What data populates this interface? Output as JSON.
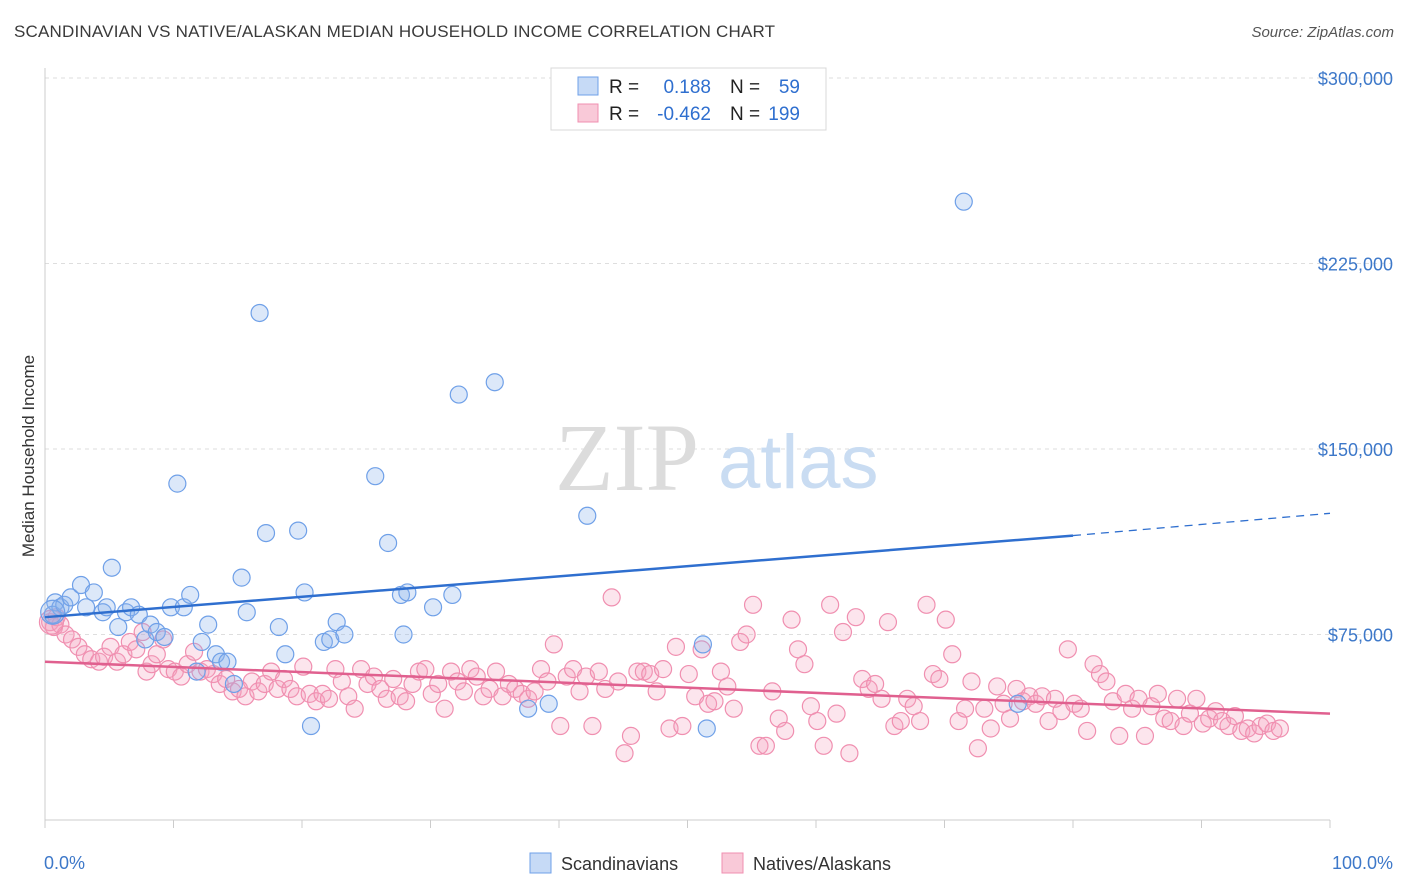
{
  "title": "SCANDINAVIAN VS NATIVE/ALASKAN MEDIAN HOUSEHOLD INCOME CORRELATION CHART",
  "source": "Source: ZipAtlas.com",
  "watermark": {
    "zip": "ZIP",
    "atlas": "atlas"
  },
  "legend": {
    "rows": [
      {
        "r_label": "R =",
        "r_value": "0.188",
        "n_label": "N =",
        "n_value": "59"
      },
      {
        "r_label": "R =",
        "r_value": "-0.462",
        "n_label": "N =",
        "n_value": "199"
      }
    ]
  },
  "bottom_legend": [
    "Scandinavians",
    "Natives/Alaskans"
  ],
  "chart_data": {
    "type": "scatter",
    "title": "SCANDINAVIAN VS NATIVE/ALASKAN MEDIAN HOUSEHOLD INCOME CORRELATION CHART",
    "xlabel": "",
    "ylabel": "Median Household Income",
    "xlim": [
      0,
      100
    ],
    "ylim": [
      0,
      310000
    ],
    "x_tick_labels": [
      "0.0%",
      "100.0%"
    ],
    "y_ticks": [
      75000,
      150000,
      225000,
      300000
    ],
    "y_tick_labels": [
      "$75,000",
      "$150,000",
      "$225,000",
      "$300,000"
    ],
    "grid": "horizontal dashed",
    "legend_position": "top-center",
    "colors": {
      "scandinavians": "#6fa0e8",
      "natives": "#f08fb0",
      "blue_line": "#2f6fcf",
      "pink_line": "#e0608f"
    },
    "series": [
      {
        "name": "Scandinavians",
        "r": 0.188,
        "n": 59,
        "trend": {
          "x0": 0,
          "y0": 82000,
          "x1": 80,
          "y1": 115000,
          "dash_to_x": 100,
          "dash_to_y": 124000
        },
        "points": [
          [
            0.8,
            88000
          ],
          [
            0.6,
            83000
          ],
          [
            1.2,
            86000
          ],
          [
            1.5,
            87000
          ],
          [
            2.0,
            90000
          ],
          [
            2.8,
            95000
          ],
          [
            3.2,
            86000
          ],
          [
            3.8,
            92000
          ],
          [
            4.5,
            84000
          ],
          [
            4.8,
            86000
          ],
          [
            5.2,
            102000
          ],
          [
            5.7,
            78000
          ],
          [
            6.3,
            84000
          ],
          [
            6.7,
            86000
          ],
          [
            7.3,
            83000
          ],
          [
            7.8,
            73000
          ],
          [
            8.2,
            79000
          ],
          [
            8.7,
            76000
          ],
          [
            9.3,
            74000
          ],
          [
            9.8,
            86000
          ],
          [
            10.3,
            136000
          ],
          [
            10.8,
            86000
          ],
          [
            11.3,
            91000
          ],
          [
            11.8,
            60000
          ],
          [
            12.2,
            72000
          ],
          [
            12.7,
            79000
          ],
          [
            13.3,
            67000
          ],
          [
            13.7,
            64000
          ],
          [
            14.2,
            64000
          ],
          [
            14.7,
            55000
          ],
          [
            15.3,
            98000
          ],
          [
            15.7,
            84000
          ],
          [
            16.7,
            205000
          ],
          [
            17.2,
            116000
          ],
          [
            18.2,
            78000
          ],
          [
            18.7,
            67000
          ],
          [
            19.7,
            117000
          ],
          [
            20.2,
            92000
          ],
          [
            20.7,
            38000
          ],
          [
            21.7,
            72000
          ],
          [
            22.2,
            73000
          ],
          [
            22.7,
            80000
          ],
          [
            23.3,
            75000
          ],
          [
            25.7,
            139000
          ],
          [
            26.7,
            112000
          ],
          [
            27.7,
            91000
          ],
          [
            28.2,
            92000
          ],
          [
            27.9,
            75000
          ],
          [
            30.2,
            86000
          ],
          [
            31.7,
            91000
          ],
          [
            32.2,
            172000
          ],
          [
            35.0,
            177000
          ],
          [
            37.6,
            45000
          ],
          [
            39.2,
            47000
          ],
          [
            42.2,
            123000
          ],
          [
            51.2,
            71000
          ],
          [
            51.5,
            37000
          ],
          [
            71.5,
            250000
          ],
          [
            75.7,
            47000
          ]
        ]
      },
      {
        "name": "Natives/Alaskans",
        "r": -0.462,
        "n": 199,
        "trend": {
          "x0": 0,
          "y0": 64000,
          "x1": 100,
          "y1": 43000
        },
        "points": [
          [
            0.4,
            80000
          ],
          [
            0.7,
            78000
          ],
          [
            0.9,
            82000
          ],
          [
            1.2,
            79000
          ],
          [
            1.6,
            75000
          ],
          [
            2.1,
            73000
          ],
          [
            2.6,
            70000
          ],
          [
            3.1,
            67000
          ],
          [
            3.6,
            65000
          ],
          [
            4.2,
            64000
          ],
          [
            4.6,
            66000
          ],
          [
            5.1,
            70000
          ],
          [
            5.6,
            64000
          ],
          [
            6.1,
            67000
          ],
          [
            6.6,
            72000
          ],
          [
            7.1,
            69000
          ],
          [
            7.6,
            76000
          ],
          [
            7.9,
            60000
          ],
          [
            8.3,
            63000
          ],
          [
            8.7,
            67000
          ],
          [
            9.2,
            73000
          ],
          [
            9.6,
            61000
          ],
          [
            10.1,
            60000
          ],
          [
            10.6,
            58000
          ],
          [
            11.1,
            63000
          ],
          [
            11.6,
            68000
          ],
          [
            12.1,
            60000
          ],
          [
            12.6,
            61000
          ],
          [
            13.1,
            59000
          ],
          [
            13.6,
            55000
          ],
          [
            14.1,
            57000
          ],
          [
            14.6,
            52000
          ],
          [
            15.1,
            53000
          ],
          [
            15.6,
            50000
          ],
          [
            16.1,
            56000
          ],
          [
            16.6,
            52000
          ],
          [
            17.1,
            55000
          ],
          [
            17.6,
            60000
          ],
          [
            18.1,
            53000
          ],
          [
            18.6,
            57000
          ],
          [
            19.1,
            53000
          ],
          [
            19.6,
            50000
          ],
          [
            20.1,
            62000
          ],
          [
            20.6,
            51000
          ],
          [
            21.1,
            48000
          ],
          [
            21.6,
            51000
          ],
          [
            22.1,
            49000
          ],
          [
            22.6,
            61000
          ],
          [
            23.1,
            56000
          ],
          [
            23.6,
            50000
          ],
          [
            24.1,
            45000
          ],
          [
            24.6,
            61000
          ],
          [
            25.1,
            55000
          ],
          [
            25.6,
            58000
          ],
          [
            26.1,
            53000
          ],
          [
            26.6,
            49000
          ],
          [
            27.1,
            57000
          ],
          [
            27.6,
            50000
          ],
          [
            28.1,
            48000
          ],
          [
            28.6,
            55000
          ],
          [
            29.1,
            60000
          ],
          [
            29.6,
            61000
          ],
          [
            30.1,
            51000
          ],
          [
            30.6,
            55000
          ],
          [
            31.1,
            45000
          ],
          [
            31.6,
            60000
          ],
          [
            32.1,
            56000
          ],
          [
            32.6,
            52000
          ],
          [
            33.1,
            61000
          ],
          [
            33.6,
            58000
          ],
          [
            34.1,
            50000
          ],
          [
            34.6,
            53000
          ],
          [
            35.1,
            60000
          ],
          [
            35.6,
            50000
          ],
          [
            36.1,
            55000
          ],
          [
            36.6,
            53000
          ],
          [
            37.1,
            51000
          ],
          [
            37.6,
            49000
          ],
          [
            38.1,
            52000
          ],
          [
            38.6,
            61000
          ],
          [
            39.1,
            56000
          ],
          [
            39.6,
            71000
          ],
          [
            40.1,
            38000
          ],
          [
            40.6,
            58000
          ],
          [
            41.1,
            61000
          ],
          [
            41.6,
            52000
          ],
          [
            42.1,
            58000
          ],
          [
            42.6,
            38000
          ],
          [
            43.1,
            60000
          ],
          [
            43.6,
            53000
          ],
          [
            44.1,
            90000
          ],
          [
            44.6,
            56000
          ],
          [
            45.1,
            27000
          ],
          [
            45.6,
            34000
          ],
          [
            46.1,
            60000
          ],
          [
            46.6,
            60000
          ],
          [
            47.1,
            59000
          ],
          [
            47.6,
            52000
          ],
          [
            48.1,
            61000
          ],
          [
            48.6,
            37000
          ],
          [
            49.1,
            70000
          ],
          [
            49.6,
            38000
          ],
          [
            50.1,
            59000
          ],
          [
            50.6,
            50000
          ],
          [
            51.1,
            69000
          ],
          [
            51.6,
            47000
          ],
          [
            52.1,
            48000
          ],
          [
            52.6,
            60000
          ],
          [
            53.1,
            54000
          ],
          [
            53.6,
            45000
          ],
          [
            54.1,
            72000
          ],
          [
            54.6,
            75000
          ],
          [
            55.1,
            87000
          ],
          [
            55.6,
            30000
          ],
          [
            56.1,
            30000
          ],
          [
            56.6,
            52000
          ],
          [
            57.1,
            41000
          ],
          [
            57.6,
            36000
          ],
          [
            58.1,
            81000
          ],
          [
            58.6,
            69000
          ],
          [
            59.1,
            63000
          ],
          [
            59.6,
            46000
          ],
          [
            60.1,
            40000
          ],
          [
            60.6,
            30000
          ],
          [
            61.1,
            87000
          ],
          [
            61.6,
            43000
          ],
          [
            62.1,
            76000
          ],
          [
            62.6,
            27000
          ],
          [
            63.1,
            82000
          ],
          [
            63.6,
            57000
          ],
          [
            64.1,
            53000
          ],
          [
            64.6,
            55000
          ],
          [
            65.1,
            49000
          ],
          [
            65.6,
            80000
          ],
          [
            66.1,
            38000
          ],
          [
            66.6,
            40000
          ],
          [
            67.1,
            49000
          ],
          [
            67.6,
            46000
          ],
          [
            68.1,
            40000
          ],
          [
            68.6,
            87000
          ],
          [
            69.1,
            59000
          ],
          [
            69.6,
            57000
          ],
          [
            70.1,
            81000
          ],
          [
            70.6,
            67000
          ],
          [
            71.1,
            40000
          ],
          [
            71.6,
            45000
          ],
          [
            72.1,
            56000
          ],
          [
            72.6,
            29000
          ],
          [
            73.1,
            45000
          ],
          [
            73.6,
            37000
          ],
          [
            74.1,
            54000
          ],
          [
            74.6,
            47000
          ],
          [
            75.1,
            41000
          ],
          [
            75.6,
            53000
          ],
          [
            76.1,
            48000
          ],
          [
            76.6,
            50000
          ],
          [
            77.1,
            47000
          ],
          [
            77.6,
            50000
          ],
          [
            78.1,
            40000
          ],
          [
            78.6,
            49000
          ],
          [
            79.1,
            44000
          ],
          [
            79.6,
            69000
          ],
          [
            80.1,
            47000
          ],
          [
            80.6,
            45000
          ],
          [
            81.1,
            36000
          ],
          [
            81.6,
            63000
          ],
          [
            82.1,
            59000
          ],
          [
            82.6,
            56000
          ],
          [
            83.1,
            48000
          ],
          [
            83.6,
            34000
          ],
          [
            84.1,
            51000
          ],
          [
            84.6,
            45000
          ],
          [
            85.1,
            49000
          ],
          [
            85.6,
            34000
          ],
          [
            86.1,
            46000
          ],
          [
            86.6,
            51000
          ],
          [
            87.1,
            41000
          ],
          [
            87.6,
            40000
          ],
          [
            88.1,
            49000
          ],
          [
            88.6,
            38000
          ],
          [
            89.1,
            43000
          ],
          [
            89.6,
            49000
          ],
          [
            90.1,
            39000
          ],
          [
            90.6,
            41000
          ],
          [
            91.1,
            44000
          ],
          [
            91.6,
            40000
          ],
          [
            92.1,
            38000
          ],
          [
            92.6,
            42000
          ],
          [
            93.1,
            36000
          ],
          [
            93.6,
            37000
          ],
          [
            94.1,
            35000
          ],
          [
            94.6,
            38000
          ],
          [
            95.1,
            39000
          ],
          [
            95.6,
            36000
          ],
          [
            96.1,
            37000
          ]
        ]
      }
    ]
  }
}
